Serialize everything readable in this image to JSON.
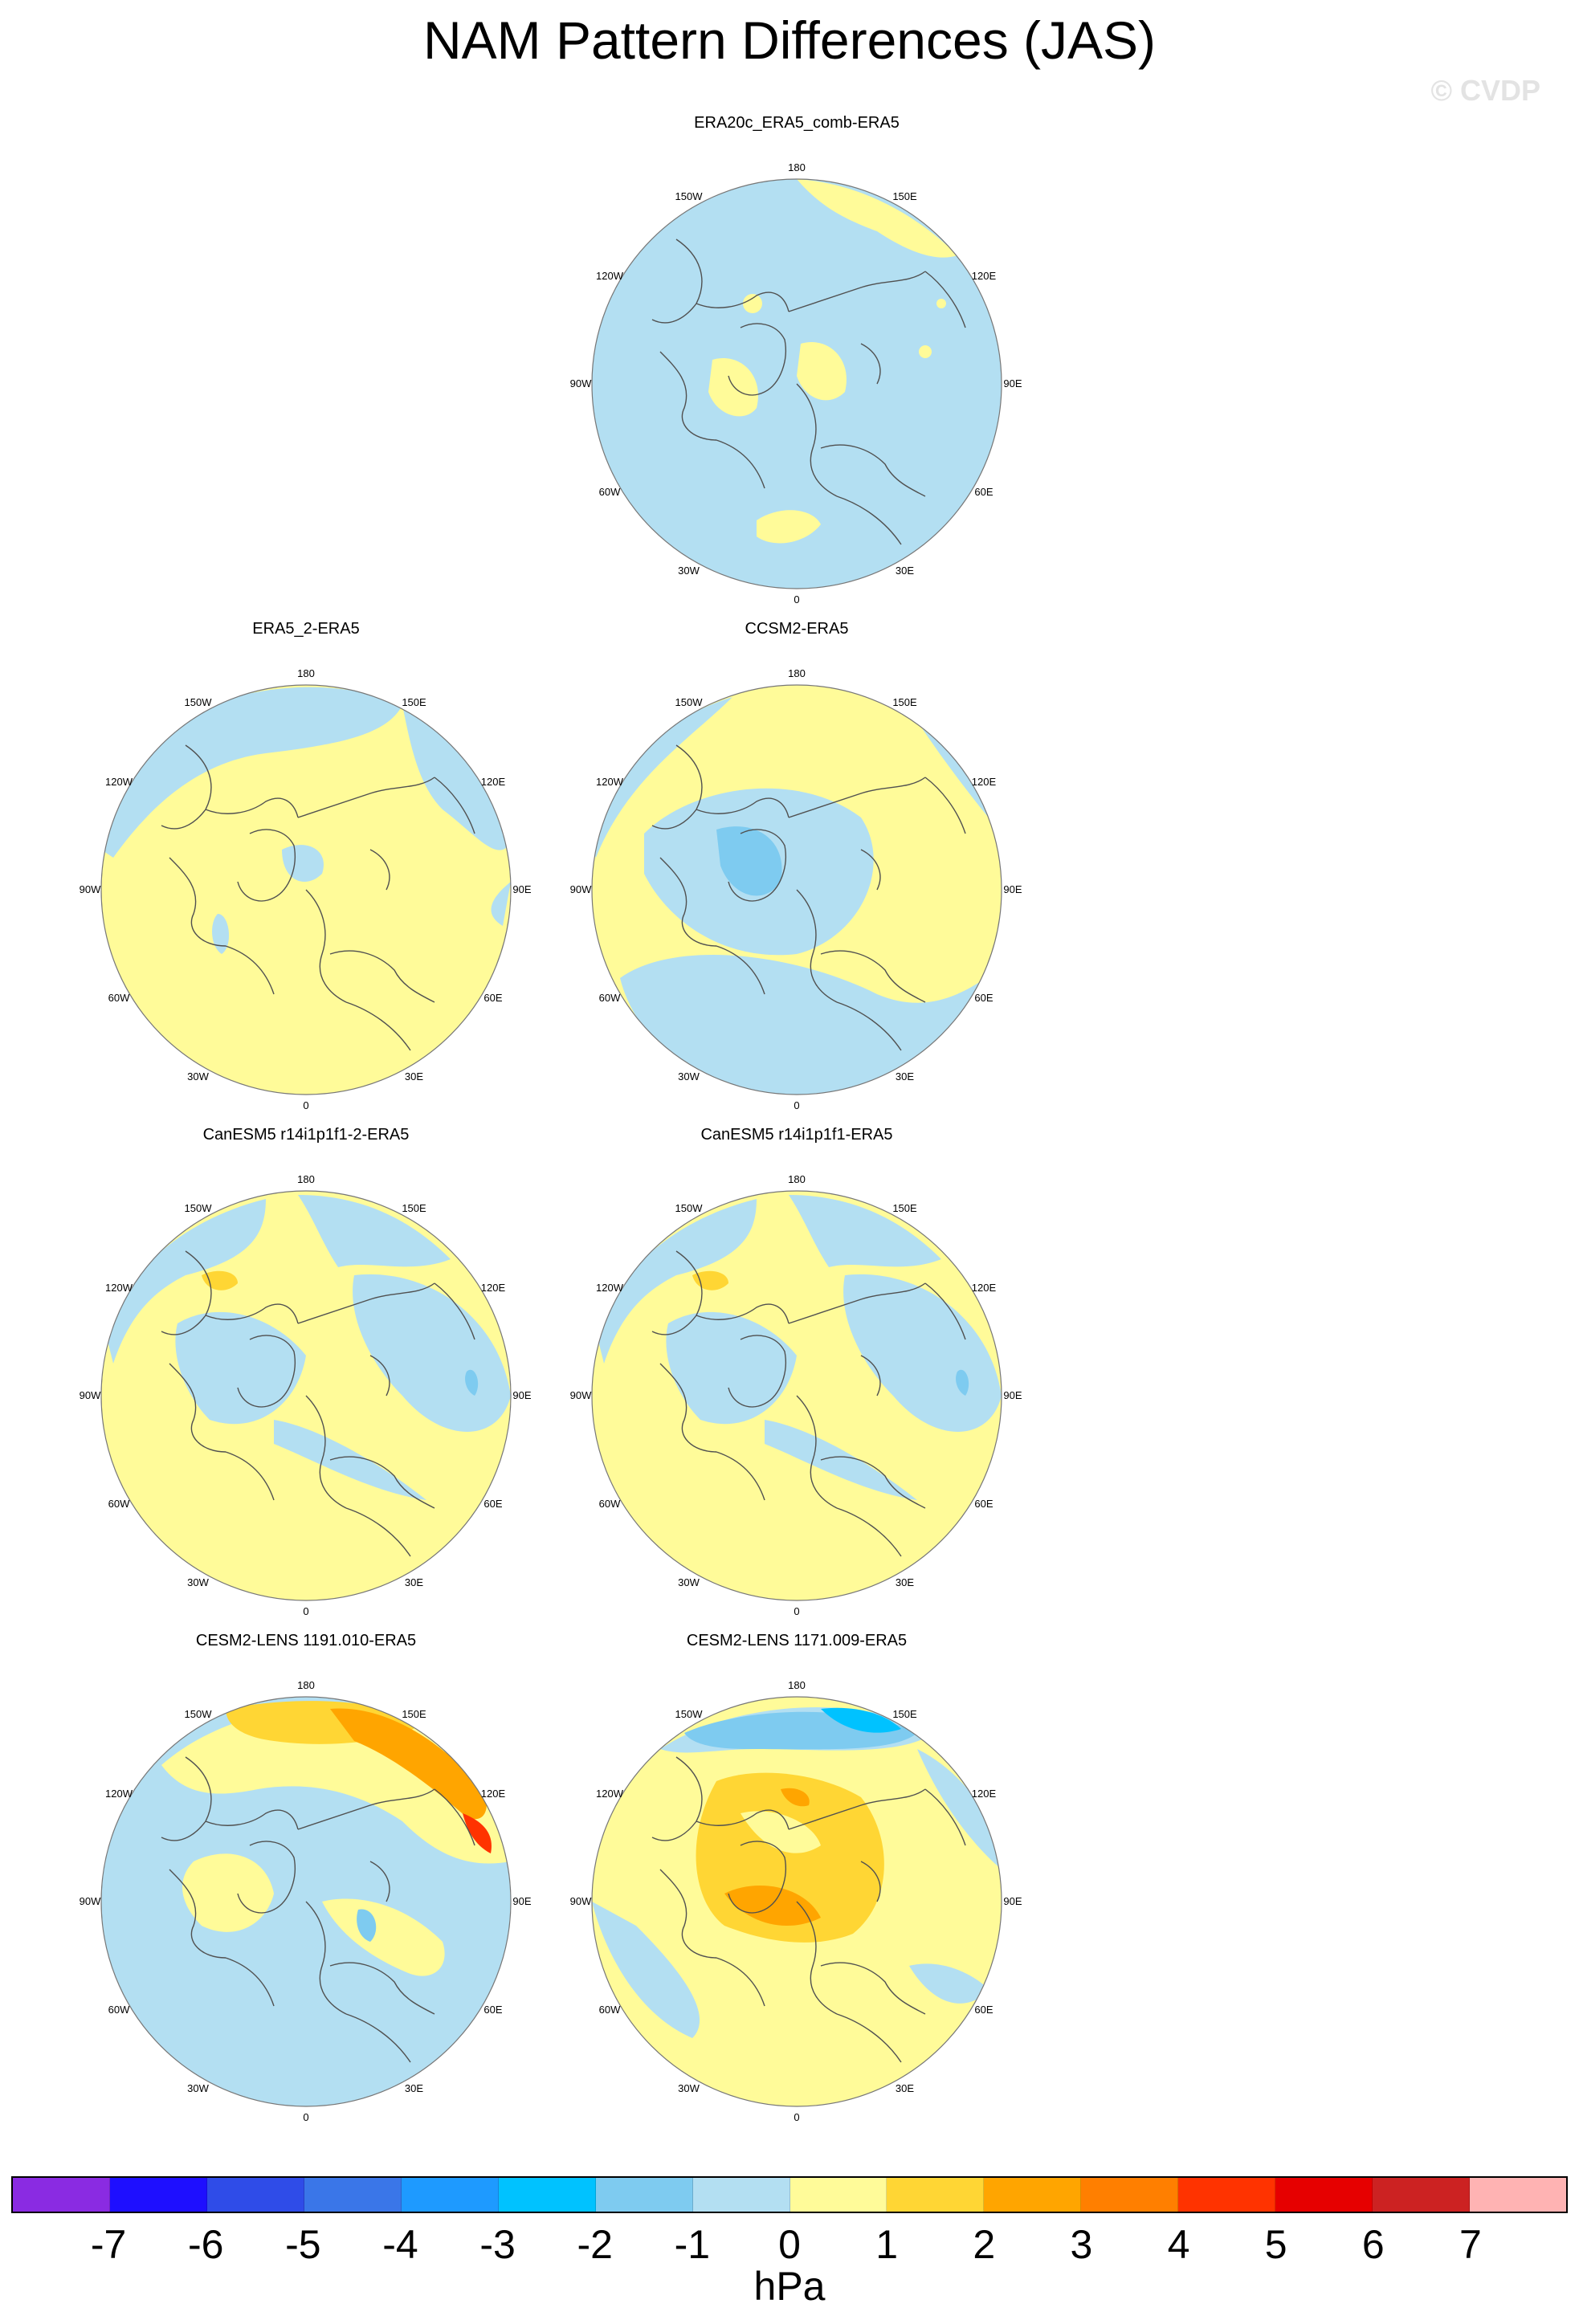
{
  "title": "NAM Pattern Differences (JAS)",
  "credit": "© CVDP",
  "lon_labels": [
    "180",
    "150E",
    "120E",
    "90E",
    "60E",
    "30E",
    "0",
    "30W",
    "60W",
    "90W",
    "120W",
    "150W"
  ],
  "colors": {
    "neg1": "#b3dff2",
    "neg2": "#7ecbf0",
    "neg3": "#00c2ff",
    "neg4": "#1e9aff",
    "neg5": "#3a76e8",
    "neg6": "#2f4ce8",
    "neg7": "#1e0fff",
    "neg8": "#8a2be2",
    "pos1": "#fffb99",
    "pos2": "#ffd634",
    "pos3": "#ffa500",
    "pos4": "#ff7f00",
    "pos5": "#ff3300",
    "pos6": "#e60000",
    "pos7": "#cc2222",
    "pos8": "#ffb3b3",
    "coast": "#505050"
  },
  "panels": [
    {
      "title": "ERA20c_ERA5_comb-ERA5"
    },
    {
      "title": "ERA5_2-ERA5"
    },
    {
      "title": "CCSM2-ERA5"
    },
    {
      "title": "CanESM5 r14i1p1f1-2-ERA5"
    },
    {
      "title": "CanESM5 r14i1p1f1-ERA5"
    },
    {
      "title": "CESM2-LENS 1191.010-ERA5"
    },
    {
      "title": "CESM2-LENS 1171.009-ERA5"
    }
  ],
  "colorbar": {
    "colors": [
      "#8a2be2",
      "#1e0fff",
      "#2f4ce8",
      "#3a76e8",
      "#1e9aff",
      "#00c2ff",
      "#7ecbf0",
      "#b3dff2",
      "#fffb99",
      "#ffd634",
      "#ffa500",
      "#ff7f00",
      "#ff3300",
      "#e60000",
      "#cc2222",
      "#ffb3b3"
    ],
    "ticks": [
      "-7",
      "-6",
      "-5",
      "-4",
      "-3",
      "-2",
      "-1",
      "0",
      "1",
      "2",
      "3",
      "4",
      "5",
      "6",
      "7"
    ],
    "unit": "hPa"
  }
}
